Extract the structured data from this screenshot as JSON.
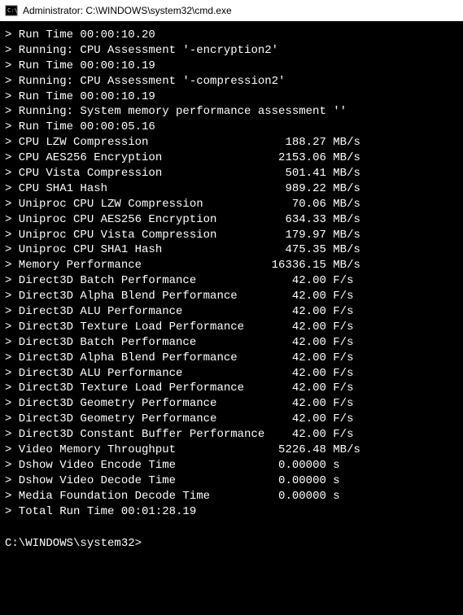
{
  "window": {
    "title": "Administrator: C:\\WINDOWS\\system32\\cmd.exe"
  },
  "output": {
    "pre_lines": [
      "> Run Time 00:00:10.20",
      "> Running: CPU Assessment '-encryption2'",
      "> Run Time 00:00:10.19",
      "> Running: CPU Assessment '-compression2'",
      "> Run Time 00:00:10.19",
      "> Running: System memory performance assessment ''",
      "> Run Time 00:00:05.16"
    ],
    "results": [
      {
        "label": "CPU LZW Compression",
        "value": "188.27",
        "unit": "MB/s"
      },
      {
        "label": "CPU AES256 Encryption",
        "value": "2153.06",
        "unit": "MB/s"
      },
      {
        "label": "CPU Vista Compression",
        "value": "501.41",
        "unit": "MB/s"
      },
      {
        "label": "CPU SHA1 Hash",
        "value": "989.22",
        "unit": "MB/s"
      },
      {
        "label": "Uniproc CPU LZW Compression",
        "value": "70.06",
        "unit": "MB/s"
      },
      {
        "label": "Uniproc CPU AES256 Encryption",
        "value": "634.33",
        "unit": "MB/s"
      },
      {
        "label": "Uniproc CPU Vista Compression",
        "value": "179.97",
        "unit": "MB/s"
      },
      {
        "label": "Uniproc CPU SHA1 Hash",
        "value": "475.35",
        "unit": "MB/s"
      },
      {
        "label": "Memory Performance",
        "value": "16336.15",
        "unit": "MB/s"
      },
      {
        "label": "Direct3D Batch Performance",
        "value": "42.00",
        "unit": "F/s"
      },
      {
        "label": "Direct3D Alpha Blend Performance",
        "value": "42.00",
        "unit": "F/s"
      },
      {
        "label": "Direct3D ALU Performance",
        "value": "42.00",
        "unit": "F/s"
      },
      {
        "label": "Direct3D Texture Load Performance",
        "value": "42.00",
        "unit": "F/s"
      },
      {
        "label": "Direct3D Batch Performance",
        "value": "42.00",
        "unit": "F/s"
      },
      {
        "label": "Direct3D Alpha Blend Performance",
        "value": "42.00",
        "unit": "F/s"
      },
      {
        "label": "Direct3D ALU Performance",
        "value": "42.00",
        "unit": "F/s"
      },
      {
        "label": "Direct3D Texture Load Performance",
        "value": "42.00",
        "unit": "F/s"
      },
      {
        "label": "Direct3D Geometry Performance",
        "value": "42.00",
        "unit": "F/s"
      },
      {
        "label": "Direct3D Geometry Performance",
        "value": "42.00",
        "unit": "F/s"
      },
      {
        "label": "Direct3D Constant Buffer Performance",
        "value": "42.00",
        "unit": "F/s"
      },
      {
        "label": "Video Memory Throughput",
        "value": "5226.48",
        "unit": "MB/s"
      },
      {
        "label": "Dshow Video Encode Time",
        "value": "0.00000",
        "unit": "s"
      },
      {
        "label": "Dshow Video Decode Time",
        "value": "0.00000",
        "unit": "s"
      },
      {
        "label": "Media Foundation Decode Time",
        "value": "0.00000",
        "unit": "s"
      }
    ],
    "post_lines": [
      "> Total Run Time 00:01:28.19"
    ],
    "prompt": "C:\\WINDOWS\\system32>"
  },
  "colors": {
    "background": "#000000",
    "foreground": "#ffffff",
    "titlebar_bg": "#ffffff",
    "titlebar_fg": "#000000"
  },
  "layout": {
    "result_label_width_ch": 37,
    "result_value_width_ch": 8
  }
}
